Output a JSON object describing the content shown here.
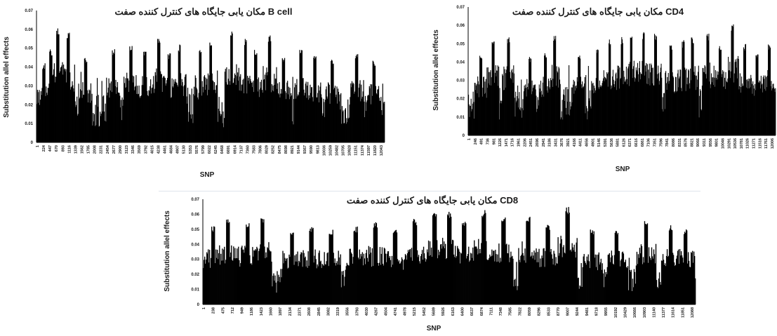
{
  "chart_data": [
    {
      "id": "bcell",
      "type": "bar",
      "title": "مکان یابی جایگاه های کنترل کننده صفت B cell",
      "xlabel": "SNP",
      "ylabel": "Substitution allel effects",
      "ylim": [
        0,
        0.07
      ],
      "yticks": [
        "0",
        "0.01",
        "0.02",
        "0.03",
        "0.04",
        "0.05",
        "0.06",
        "0.07"
      ],
      "xticks": [
        "1",
        "224",
        "447",
        "670",
        "893",
        "1116",
        "1339",
        "1562",
        "1785",
        "2008",
        "2231",
        "2454",
        "2677",
        "2900",
        "3123",
        "3346",
        "3569",
        "3792",
        "4015",
        "4238",
        "4461",
        "4684",
        "4907",
        "5130",
        "5353",
        "5576",
        "5799",
        "6022",
        "6245",
        "6468",
        "6691",
        "6914",
        "7137",
        "7360",
        "7583",
        "7806",
        "8029",
        "8252",
        "8475",
        "8698",
        "8921",
        "9144",
        "9367",
        "9590",
        "9813",
        "10036",
        "10259",
        "10482",
        "10705",
        "10928",
        "11151",
        "11374",
        "11597",
        "11820",
        "12043"
      ],
      "grid": false,
      "color": "#000000",
      "bar_count": 600,
      "base_level": 0.016,
      "spikes": [
        [
          0.02,
          0.042
        ],
        [
          0.04,
          0.05
        ],
        [
          0.06,
          0.061
        ],
        [
          0.09,
          0.059
        ],
        [
          0.14,
          0.045
        ],
        [
          0.22,
          0.05
        ],
        [
          0.27,
          0.052
        ],
        [
          0.31,
          0.05
        ],
        [
          0.35,
          0.055
        ],
        [
          0.38,
          0.048
        ],
        [
          0.41,
          0.052
        ],
        [
          0.47,
          0.05
        ],
        [
          0.5,
          0.054
        ],
        [
          0.56,
          0.06
        ],
        [
          0.6,
          0.056
        ],
        [
          0.63,
          0.05
        ],
        [
          0.67,
          0.058
        ],
        [
          0.71,
          0.046
        ],
        [
          0.76,
          0.05
        ],
        [
          0.8,
          0.046
        ],
        [
          0.85,
          0.045
        ],
        [
          0.92,
          0.047
        ],
        [
          0.97,
          0.044
        ]
      ]
    },
    {
      "id": "cd4",
      "type": "bar",
      "title": "مکان یابی جایگاه های کنترل کننده صفت CD4",
      "xlabel": "SNP",
      "ylabel": "Substitution allel effects",
      "ylim": [
        0,
        0.07
      ],
      "yticks": [
        "0",
        "0.01",
        "0.02",
        "0.03",
        "0.04",
        "0.05",
        "0.06",
        "0.07"
      ],
      "xticks": [
        "1",
        "246",
        "491",
        "736",
        "981",
        "1226",
        "1471",
        "1716",
        "1961",
        "2206",
        "2451",
        "2696",
        "2941",
        "3186",
        "3431",
        "3676",
        "3921",
        "4166",
        "4411",
        "4656",
        "4901",
        "5146",
        "5391",
        "5636",
        "5881",
        "6126",
        "6371",
        "6616",
        "6861",
        "7106",
        "7351",
        "7596",
        "7841",
        "8086",
        "8331",
        "8576",
        "8821",
        "9066",
        "9311",
        "9556",
        "9801",
        "10046",
        "10291",
        "10536",
        "10781",
        "11026",
        "11271",
        "11516",
        "11761",
        "12006"
      ],
      "grid": false,
      "color": "#000000",
      "bar_count": 600,
      "base_level": 0.017,
      "spikes": [
        [
          0.04,
          0.045
        ],
        [
          0.08,
          0.054
        ],
        [
          0.13,
          0.054
        ],
        [
          0.2,
          0.043
        ],
        [
          0.25,
          0.045
        ],
        [
          0.28,
          0.055
        ],
        [
          0.36,
          0.045
        ],
        [
          0.42,
          0.047
        ],
        [
          0.46,
          0.053
        ],
        [
          0.5,
          0.054
        ],
        [
          0.53,
          0.057
        ],
        [
          0.57,
          0.057
        ],
        [
          0.61,
          0.056
        ],
        [
          0.66,
          0.05
        ],
        [
          0.7,
          0.052
        ],
        [
          0.73,
          0.054
        ],
        [
          0.78,
          0.056
        ],
        [
          0.82,
          0.05
        ],
        [
          0.86,
          0.062
        ],
        [
          0.9,
          0.05
        ],
        [
          0.94,
          0.046
        ],
        [
          0.98,
          0.05
        ]
      ]
    },
    {
      "id": "cd8",
      "type": "bar",
      "title": "مکان یابی جایگاه های کنترل کننده صفت CD8",
      "xlabel": "SNP",
      "ylabel": "Substitution allel effects",
      "ylim": [
        0,
        0.07
      ],
      "yticks": [
        "0",
        "0.01",
        "0.02",
        "0.03",
        "0.04",
        "0.05",
        "0.06",
        "0.07"
      ],
      "xticks": [
        "1",
        "238",
        "475",
        "712",
        "949",
        "1186",
        "1423",
        "1660",
        "1897",
        "2134",
        "2371",
        "2608",
        "2845",
        "3082",
        "3319",
        "3556",
        "3793",
        "4030",
        "4267",
        "4504",
        "4741",
        "4978",
        "5215",
        "5452",
        "5689",
        "5926",
        "6163",
        "6400",
        "6637",
        "6874",
        "7111",
        "7348",
        "7585",
        "7822",
        "8059",
        "8296",
        "8533",
        "8770",
        "9007",
        "9244",
        "9481",
        "9718",
        "9955",
        "10192",
        "10429",
        "10666",
        "10903",
        "11140",
        "11377",
        "11614",
        "11851",
        "12088"
      ],
      "grid": false,
      "color": "#000000",
      "bar_count": 700,
      "base_level": 0.016,
      "spikes": [
        [
          0.02,
          0.052
        ],
        [
          0.05,
          0.057
        ],
        [
          0.09,
          0.055
        ],
        [
          0.12,
          0.058
        ],
        [
          0.18,
          0.05
        ],
        [
          0.22,
          0.052
        ],
        [
          0.26,
          0.05
        ],
        [
          0.31,
          0.052
        ],
        [
          0.35,
          0.055
        ],
        [
          0.39,
          0.05
        ],
        [
          0.43,
          0.057
        ],
        [
          0.47,
          0.061
        ],
        [
          0.5,
          0.062
        ],
        [
          0.53,
          0.055
        ],
        [
          0.57,
          0.063
        ],
        [
          0.61,
          0.059
        ],
        [
          0.66,
          0.059
        ],
        [
          0.7,
          0.053
        ],
        [
          0.74,
          0.065
        ],
        [
          0.79,
          0.05
        ],
        [
          0.84,
          0.05
        ],
        [
          0.9,
          0.057
        ],
        [
          0.95,
          0.053
        ],
        [
          0.98,
          0.05
        ]
      ]
    }
  ]
}
